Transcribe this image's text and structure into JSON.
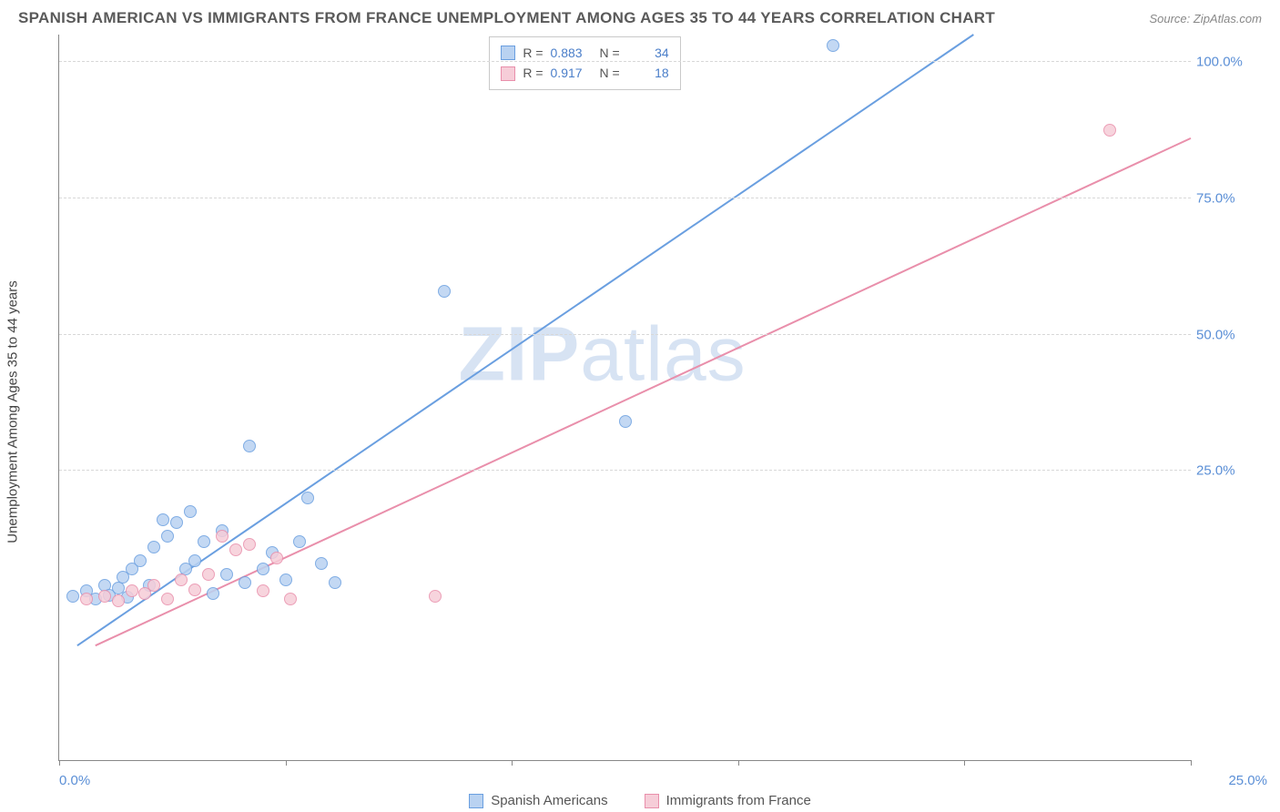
{
  "title": "SPANISH AMERICAN VS IMMIGRANTS FROM FRANCE UNEMPLOYMENT AMONG AGES 35 TO 44 YEARS CORRELATION CHART",
  "source_prefix": "Source: ",
  "source": "ZipAtlas.com",
  "ylabel": "Unemployment Among Ages 35 to 44 years",
  "watermark_a": "ZIP",
  "watermark_b": "atlas",
  "chart": {
    "type": "scatter",
    "background_color": "#ffffff",
    "grid_color": "#d8d8d8",
    "axis_color": "#888888",
    "label_color_axis": "#5b8fd6",
    "label_color_text": "#555555",
    "title_color": "#5a5a5a",
    "title_fontsize": 17,
    "label_fontsize": 15,
    "xlim": [
      0,
      25
    ],
    "ylim": [
      -28,
      105
    ],
    "ytick_values": [
      25,
      50,
      75,
      100
    ],
    "ytick_labels": [
      "25.0%",
      "50.0%",
      "75.0%",
      "100.0%"
    ],
    "xtick_values": [
      0,
      5,
      10,
      15,
      20,
      25
    ],
    "xtick_label_left": "0.0%",
    "xtick_label_right": "25.0%",
    "marker_radius": 7,
    "line_width": 2,
    "series": [
      {
        "name": "Spanish Americans",
        "color_fill": "#b9d2f1",
        "color_stroke": "#6a9fe0",
        "r": "0.883",
        "n": "34",
        "trend": {
          "x1": 0.4,
          "y1": -7,
          "x2": 20.2,
          "y2": 105
        },
        "points": [
          [
            0.3,
            2
          ],
          [
            0.6,
            3
          ],
          [
            0.8,
            1.5
          ],
          [
            1.0,
            4
          ],
          [
            1.1,
            2.2
          ],
          [
            1.3,
            3.5
          ],
          [
            1.4,
            5.5
          ],
          [
            1.5,
            1.8
          ],
          [
            1.6,
            7
          ],
          [
            1.8,
            8.5
          ],
          [
            2.0,
            4
          ],
          [
            2.1,
            11
          ],
          [
            2.3,
            16
          ],
          [
            2.4,
            13
          ],
          [
            2.6,
            15.5
          ],
          [
            2.8,
            7
          ],
          [
            3.0,
            8.5
          ],
          [
            3.2,
            12
          ],
          [
            3.4,
            2.5
          ],
          [
            3.6,
            14
          ],
          [
            3.7,
            6
          ],
          [
            4.1,
            4.5
          ],
          [
            4.2,
            29.5
          ],
          [
            4.5,
            7
          ],
          [
            4.7,
            10
          ],
          [
            5.0,
            5
          ],
          [
            5.3,
            12
          ],
          [
            5.5,
            20
          ],
          [
            5.8,
            8
          ],
          [
            6.1,
            4.5
          ],
          [
            8.5,
            58
          ],
          [
            12.5,
            34
          ],
          [
            17.1,
            103
          ],
          [
            2.9,
            17.5
          ]
        ]
      },
      {
        "name": "Immigrants from France",
        "color_fill": "#f6cdd8",
        "color_stroke": "#e98fab",
        "r": "0.917",
        "n": "18",
        "trend": {
          "x1": 0.8,
          "y1": -7,
          "x2": 25,
          "y2": 86
        },
        "points": [
          [
            0.6,
            1.5
          ],
          [
            1.0,
            2
          ],
          [
            1.3,
            1.2
          ],
          [
            1.6,
            3
          ],
          [
            1.9,
            2.5
          ],
          [
            2.1,
            4
          ],
          [
            2.4,
            1.5
          ],
          [
            2.7,
            5
          ],
          [
            3.0,
            3.2
          ],
          [
            3.3,
            6
          ],
          [
            3.6,
            13
          ],
          [
            3.9,
            10.5
          ],
          [
            4.2,
            11.5
          ],
          [
            4.5,
            3
          ],
          [
            4.8,
            9
          ],
          [
            5.1,
            1.5
          ],
          [
            8.3,
            2
          ],
          [
            23.2,
            87.5
          ]
        ]
      }
    ]
  },
  "statbox_rows": [
    {
      "swatch_fill": "#b9d2f1",
      "swatch_stroke": "#6a9fe0",
      "r": "0.883",
      "n": "34"
    },
    {
      "swatch_fill": "#f6cdd8",
      "swatch_stroke": "#e98fab",
      "r": "0.917",
      "n": "18"
    }
  ],
  "legend": [
    {
      "label": "Spanish Americans",
      "fill": "#b9d2f1",
      "stroke": "#6a9fe0"
    },
    {
      "label": "Immigrants from France",
      "fill": "#f6cdd8",
      "stroke": "#e98fab"
    }
  ]
}
